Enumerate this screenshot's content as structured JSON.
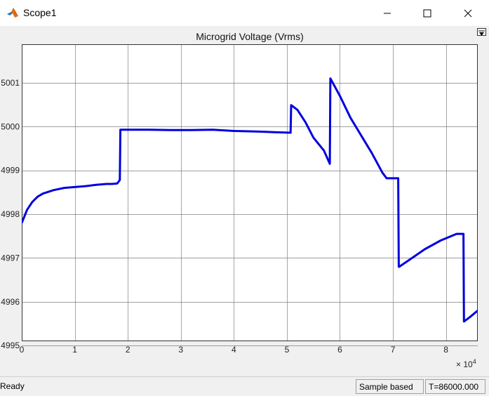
{
  "window": {
    "title": "Scope1",
    "icon": "matlab-icon",
    "buttons": [
      "minimize-icon",
      "maximize-icon",
      "close-icon"
    ]
  },
  "plot": {
    "title": "Microgrid Voltage (Vrms)",
    "x_exponent_base": "× 10",
    "x_exponent_power": "4"
  },
  "status": {
    "ready": "Ready",
    "sample": "Sample based",
    "time": "T=86000.000"
  },
  "colors": {
    "line": "#0000dd",
    "axes_bg": "#ffffff",
    "grid": "#808080"
  },
  "chart_data": {
    "type": "line",
    "title": "Microgrid Voltage (Vrms)",
    "xlabel": "",
    "ylabel": "",
    "xlim": [
      0,
      86000
    ],
    "ylim": [
      4995.1,
      4980.0
    ],
    "y_scale_note": "",
    "grid": true,
    "legend": "none",
    "x_ticks": [
      0,
      10000,
      20000,
      30000,
      40000,
      50000,
      60000,
      70000,
      80000
    ],
    "x_tick_labels": [
      "0",
      "1",
      "2",
      "3",
      "4",
      "5",
      "6",
      "7",
      "8"
    ],
    "y_ticks": [
      4995.2,
      4996.2,
      4997.2,
      4998.2,
      4999.2,
      5000.2,
      5001.2
    ],
    "y_tick_labels": [
      "4995",
      "4996",
      "4997",
      "4998",
      "4999",
      "5000",
      "5001"
    ],
    "series": [
      {
        "x": [
          0,
          1000,
          2000,
          3000,
          4000,
          6000,
          8000,
          10000,
          12000,
          14000,
          16000,
          17000,
          18000,
          18500,
          18600,
          20000,
          24000,
          28000,
          32000,
          36000,
          40000,
          44000,
          48000,
          50700,
          50800,
          52000,
          53500,
          55000,
          57000,
          58100,
          58200,
          60000,
          62000,
          64000,
          66000,
          68000,
          68800,
          69500,
          71000,
          71100,
          71200,
          73000,
          76000,
          79000,
          82000,
          83300,
          83400,
          84500,
          86000
        ],
        "y": [
          4997.8,
          4998.1,
          4998.28,
          4998.4,
          4998.47,
          4998.55,
          4998.6,
          4998.62,
          4998.64,
          4998.67,
          4998.69,
          4998.69,
          4998.7,
          4998.78,
          4999.93,
          4999.93,
          4999.93,
          4999.92,
          4999.92,
          4999.93,
          4999.9,
          4999.89,
          4999.87,
          4999.86,
          5000.49,
          5000.38,
          5000.1,
          4999.75,
          4999.45,
          4999.15,
          5001.1,
          5000.7,
          5000.2,
          4999.8,
          4999.4,
          4998.95,
          4998.82,
          4998.82,
          4998.82,
          4996.8,
          4996.8,
          4996.95,
          4997.2,
          4997.4,
          4997.55,
          4997.55,
          4995.55,
          4995.65,
          4995.8
        ]
      }
    ]
  }
}
